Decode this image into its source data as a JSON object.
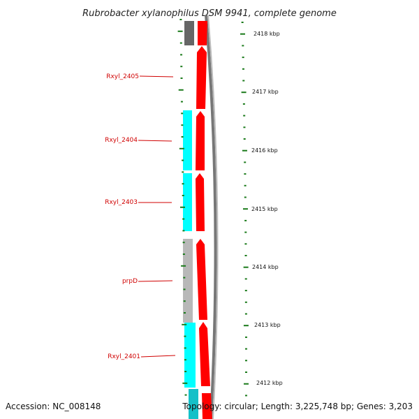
{
  "title": "Rubrobacter xylanophilus DSM 9941, complete genome",
  "footer": {
    "accession": "Accession: NC_008148",
    "summary": "Topology: circular; Length: 3,225,748 bp; Genes: 3,203"
  },
  "colors": {
    "forward_cds": "#ff0000",
    "reverse_cds_cyan": "#00ffff",
    "reverse_cds_gray": "#b8b8b8",
    "reverse_cds_dark": "#666666",
    "backbone": "#888888",
    "ticks": "#1a7a1a",
    "label": "#d00000"
  },
  "scale_labels": [
    "2418 kbp",
    "2417 kbp",
    "2416 kbp",
    "2415 kbp",
    "2414 kbp",
    "2413 kbp",
    "2412 kbp"
  ],
  "gene_labels": [
    "Rxyl_2405",
    "Rxyl_2404",
    "Rxyl_2403",
    "prpD",
    "Rxyl_2401"
  ]
}
